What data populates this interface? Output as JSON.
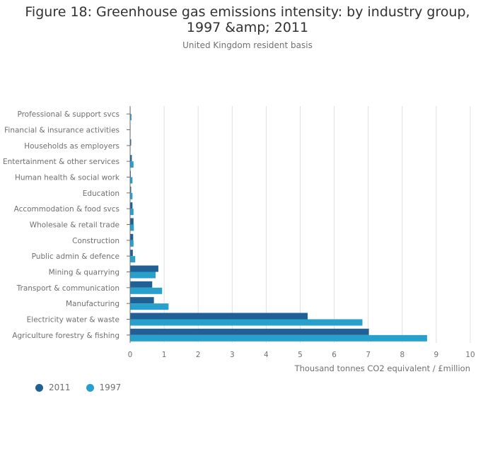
{
  "title": "Figure 18: Greenhouse gas emissions intensity: by industry group, 1997 &amp; 2011",
  "subtitle": "United Kingdom resident basis",
  "colors": {
    "series_2011": "#206095",
    "series_1997": "#27a0cc",
    "grid": "#e0e0e0",
    "axis": "#707071"
  },
  "chart_data": {
    "type": "bar",
    "orientation": "horizontal",
    "title": "Figure 18: Greenhouse gas emissions intensity: by industry group, 1997 &amp; 2011",
    "subtitle": "United Kingdom resident basis",
    "xlabel": "Thousand tonnes CO2 equivalent / £million",
    "ylabel": "",
    "xlim": [
      0,
      10
    ],
    "xticks": [
      0,
      1,
      2,
      3,
      4,
      5,
      6,
      7,
      8,
      9,
      10
    ],
    "grid": true,
    "legend_placement": "bottom-left",
    "categories": [
      "Professional & support svcs",
      "Financial & insurance activities",
      "Households as employers",
      "Entertainment & other services",
      "Human health & social work",
      "Education",
      "Accommodation & food svcs",
      "Wholesale & retail trade",
      "Construction",
      "Public admin & defence",
      "Mining & quarrying",
      "Transport & communication",
      "Manufacturing",
      "Electricity water & waste",
      "Agriculture forestry & fishing"
    ],
    "series": [
      {
        "name": "2011",
        "values": [
          0.01,
          0.01,
          0.03,
          0.05,
          0.02,
          0.03,
          0.07,
          0.1,
          0.09,
          0.08,
          0.83,
          0.65,
          0.7,
          5.22,
          7.02
        ]
      },
      {
        "name": "1997",
        "values": [
          0.04,
          0.01,
          0.01,
          0.1,
          0.07,
          0.07,
          0.1,
          0.11,
          0.1,
          0.15,
          0.75,
          0.94,
          1.13,
          6.83,
          8.73
        ]
      }
    ]
  }
}
